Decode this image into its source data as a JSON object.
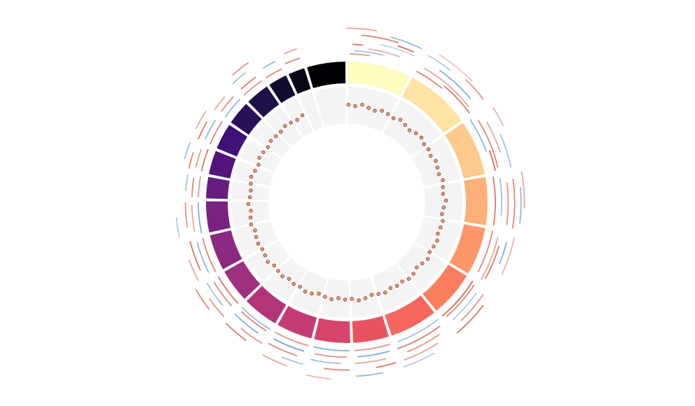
{
  "chart_data": {
    "type": "circos",
    "segments": {
      "values": [
        27,
        28,
        24,
        21,
        21,
        20,
        21,
        16,
        16,
        16,
        16,
        15,
        16,
        14,
        10,
        11,
        12,
        11,
        11,
        9,
        8,
        17
      ],
      "colors": [
        "#fcfdbf",
        "#fee3a4",
        "#fec98d",
        "#feb078",
        "#fd9668",
        "#fa7d5e",
        "#f4675c",
        "#e85362",
        "#d8456c",
        "#c53c74",
        "#b23578",
        "#9f2f7f",
        "#8c2981",
        "#792282",
        "#661c81",
        "#53147d",
        "#3f1077",
        "#2b0f5b",
        "#1d1147",
        "#110b30",
        "#080616",
        "#000004"
      ]
    },
    "scatter": {
      "ylim": [
        0,
        1
      ],
      "fill": "#f5a623",
      "stroke": "#7b2d8e",
      "x": [
        1,
        5,
        9,
        13,
        17,
        21,
        25,
        29,
        33,
        37,
        41,
        45,
        49,
        53,
        57,
        61,
        65,
        69,
        73,
        77,
        81,
        85,
        89,
        93,
        97,
        101,
        105,
        109,
        113,
        117,
        121,
        125,
        129,
        133,
        137,
        141,
        145,
        149,
        153,
        157,
        161,
        165,
        169,
        173,
        177,
        181,
        185,
        189,
        193,
        197,
        201,
        205,
        209,
        213,
        217,
        221,
        225,
        229,
        233,
        237,
        241,
        245,
        249,
        253,
        257,
        261,
        265,
        269,
        273,
        277,
        281,
        285,
        289,
        293,
        297,
        301,
        305,
        309,
        313,
        317,
        321,
        325,
        329,
        333
      ],
      "values": [
        0.52,
        0.49,
        0.55,
        0.5,
        0.47,
        0.53,
        0.51,
        0.48,
        0.54,
        0.5,
        0.46,
        0.52,
        0.55,
        0.49,
        0.51,
        0.47,
        0.53,
        0.5,
        0.48,
        0.54,
        0.51,
        0.49,
        0.56,
        0.5,
        0.47,
        0.52,
        0.5,
        0.48,
        0.53,
        0.51,
        0.49,
        0.55,
        0.5,
        0.46,
        0.52,
        0.54,
        0.49,
        0.51,
        0.48,
        0.53,
        0.5,
        0.47,
        0.52,
        0.55,
        0.49,
        0.51,
        0.48,
        0.53,
        0.5,
        0.46,
        0.52,
        0.54,
        0.49,
        0.51,
        0.47,
        0.53,
        0.5,
        0.48,
        0.55,
        0.51,
        0.49,
        0.52,
        0.5,
        0.47,
        0.53,
        0.51,
        0.48,
        0.54,
        0.5,
        0.49,
        0.52,
        0.55,
        0.5,
        0.47,
        0.53,
        0.51,
        0.48,
        0.52,
        0.5,
        0.49,
        0.53,
        0.51,
        0.48,
        0.52
      ]
    },
    "arcs": {
      "colors": [
        "#3a87bd",
        "#f2f2f2",
        "#c9492f"
      ],
      "start": [
        1,
        3,
        2,
        8,
        12,
        5,
        15,
        0,
        18,
        28,
        30,
        35,
        40,
        29,
        44,
        32,
        56,
        58,
        60,
        66,
        57,
        70,
        80,
        81,
        83,
        82,
        85,
        80,
        101,
        103,
        104,
        106,
        102,
        122,
        123,
        125,
        124,
        127,
        142,
        143,
        145,
        147,
        150,
        163,
        164,
        166,
        163,
        168,
        179,
        180,
        182,
        179,
        185,
        195,
        196,
        198,
        195,
        200,
        211,
        212,
        214,
        211,
        216,
        227,
        228,
        230,
        227,
        232,
        242,
        243,
        245,
        242,
        258,
        259,
        261,
        258,
        272,
        272,
        274,
        282,
        283,
        282,
        285,
        293,
        294,
        293,
        296,
        305,
        306,
        305,
        316,
        317,
        316,
        318,
        327,
        328,
        336,
        337
      ],
      "end": [
        9,
        14,
        6,
        20,
        25,
        18,
        26,
        10,
        24,
        40,
        52,
        50,
        54,
        38,
        53,
        46,
        70,
        77,
        72,
        78,
        64,
        78,
        99,
        95,
        98,
        99,
        97,
        92,
        118,
        120,
        112,
        119,
        115,
        140,
        139,
        138,
        136,
        140,
        160,
        161,
        158,
        160,
        161,
        177,
        176,
        177,
        170,
        177,
        193,
        192,
        193,
        188,
        193,
        209,
        208,
        209,
        203,
        209,
        225,
        224,
        225,
        220,
        225,
        240,
        239,
        240,
        235,
        240,
        256,
        255,
        256,
        250,
        270,
        269,
        270,
        265,
        280,
        279,
        280,
        291,
        290,
        288,
        291,
        303,
        302,
        300,
        303,
        314,
        313,
        311,
        325,
        324,
        322,
        325,
        334,
        333,
        342,
        342
      ],
      "lane": [
        0,
        1,
        3,
        2,
        4,
        6,
        7,
        8,
        5,
        0,
        2,
        4,
        1,
        6,
        7,
        8,
        0,
        2,
        4,
        6,
        8,
        1,
        0,
        2,
        4,
        6,
        8,
        9,
        0,
        2,
        5,
        3,
        7,
        0,
        1,
        3,
        5,
        7,
        0,
        2,
        4,
        6,
        8,
        0,
        2,
        4,
        6,
        8,
        0,
        2,
        4,
        6,
        9,
        0,
        2,
        4,
        6,
        8,
        0,
        1,
        3,
        5,
        7,
        0,
        2,
        4,
        6,
        8,
        0,
        2,
        4,
        6,
        0,
        2,
        4,
        7,
        0,
        2,
        4,
        0,
        2,
        4,
        6,
        0,
        2,
        4,
        6,
        0,
        2,
        4,
        0,
        2,
        5,
        7,
        0,
        3,
        1,
        4
      ],
      "values": [
        0.6,
        -0.5,
        0.8,
        0.4,
        -0.3,
        0.7,
        -0.6,
        0.5,
        0.9,
        0.7,
        0.5,
        -0.7,
        0.8,
        -0.4,
        0.6,
        0.3,
        -0.6,
        0.7,
        0.5,
        -0.5,
        0.4,
        0.9,
        0.8,
        -0.5,
        0.6,
        0.7,
        -0.6,
        0.5,
        0.7,
        0.5,
        -0.7,
        0.8,
        0.4,
        0.9,
        0.7,
        -0.4,
        0.6,
        0.8,
        -0.5,
        0.8,
        0.6,
        0.5,
        -0.4,
        0.6,
        -0.7,
        0.5,
        0.8,
        -0.6,
        -0.7,
        0.6,
        -0.5,
        0.7,
        0.4,
        0.6,
        -0.8,
        0.7,
        -0.5,
        0.5,
        -0.6,
        0.7,
        -0.7,
        0.6,
        0.8,
        0.8,
        0.7,
        -0.5,
        0.6,
        0.7,
        0.7,
        -0.6,
        0.8,
        0.5,
        -0.7,
        0.5,
        0.6,
        -0.4,
        0.6,
        0.7,
        -0.5,
        0.8,
        0.6,
        0.7,
        -0.5,
        0.7,
        -0.6,
        0.8,
        0.5,
        -0.6,
        0.7,
        0.5,
        0.6,
        0.8,
        -0.5,
        0.6,
        0.7,
        -0.6,
        0.7,
        0.5
      ]
    }
  }
}
